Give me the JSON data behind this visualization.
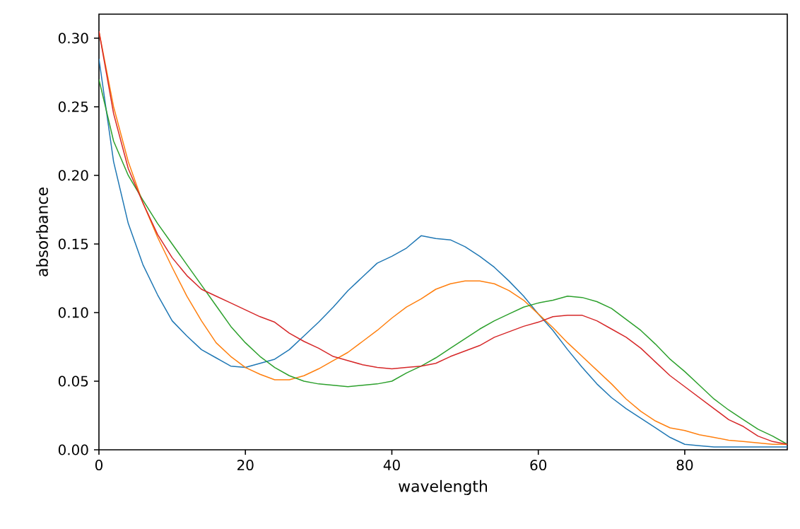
{
  "chart_data": {
    "type": "line",
    "xlabel": "wavelength",
    "ylabel": "absorbance",
    "x": [
      0,
      2,
      4,
      6,
      8,
      10,
      12,
      14,
      16,
      18,
      20,
      22,
      24,
      26,
      28,
      30,
      32,
      34,
      36,
      38,
      40,
      42,
      44,
      46,
      48,
      50,
      52,
      54,
      56,
      58,
      60,
      62,
      64,
      66,
      68,
      70,
      72,
      74,
      76,
      78,
      80,
      82,
      84,
      86,
      88,
      90,
      92,
      94
    ],
    "series": [
      {
        "color": "#1f77b4",
        "values": [
          0.285,
          0.21,
          0.165,
          0.135,
          0.113,
          0.094,
          0.083,
          0.073,
          0.067,
          0.061,
          0.06,
          0.063,
          0.066,
          0.073,
          0.083,
          0.093,
          0.104,
          0.116,
          0.126,
          0.136,
          0.141,
          0.147,
          0.156,
          0.154,
          0.153,
          0.148,
          0.141,
          0.133,
          0.123,
          0.112,
          0.099,
          0.087,
          0.073,
          0.06,
          0.048,
          0.038,
          0.03,
          0.023,
          0.016,
          0.009,
          0.004,
          0.003,
          0.002,
          0.002,
          0.002,
          0.002,
          0.002,
          0.002
        ]
      },
      {
        "color": "#ff7f0e",
        "values": [
          0.305,
          0.25,
          0.21,
          0.18,
          0.155,
          0.133,
          0.112,
          0.094,
          0.078,
          0.068,
          0.06,
          0.055,
          0.051,
          0.051,
          0.054,
          0.059,
          0.065,
          0.071,
          0.079,
          0.087,
          0.096,
          0.104,
          0.11,
          0.117,
          0.121,
          0.123,
          0.123,
          0.121,
          0.116,
          0.109,
          0.099,
          0.089,
          0.078,
          0.068,
          0.058,
          0.048,
          0.037,
          0.028,
          0.021,
          0.016,
          0.014,
          0.011,
          0.009,
          0.007,
          0.006,
          0.005,
          0.004,
          0.004
        ]
      },
      {
        "color": "#2ca02c",
        "values": [
          0.27,
          0.225,
          0.2,
          0.182,
          0.165,
          0.15,
          0.135,
          0.12,
          0.105,
          0.09,
          0.078,
          0.068,
          0.06,
          0.054,
          0.05,
          0.048,
          0.047,
          0.046,
          0.047,
          0.048,
          0.05,
          0.056,
          0.061,
          0.067,
          0.074,
          0.081,
          0.088,
          0.094,
          0.099,
          0.104,
          0.107,
          0.109,
          0.112,
          0.111,
          0.108,
          0.103,
          0.095,
          0.087,
          0.077,
          0.066,
          0.057,
          0.047,
          0.037,
          0.029,
          0.022,
          0.015,
          0.01,
          0.004
        ]
      },
      {
        "color": "#d62728",
        "values": [
          0.305,
          0.245,
          0.205,
          0.18,
          0.157,
          0.14,
          0.127,
          0.117,
          0.112,
          0.107,
          0.102,
          0.097,
          0.093,
          0.085,
          0.079,
          0.074,
          0.068,
          0.065,
          0.062,
          0.06,
          0.059,
          0.06,
          0.061,
          0.063,
          0.068,
          0.072,
          0.076,
          0.082,
          0.086,
          0.09,
          0.093,
          0.097,
          0.098,
          0.098,
          0.094,
          0.088,
          0.082,
          0.074,
          0.064,
          0.054,
          0.046,
          0.038,
          0.03,
          0.022,
          0.017,
          0.01,
          0.006,
          0.004
        ]
      }
    ],
    "xlim": [
      0,
      94
    ],
    "ylim": [
      0,
      0.3175
    ],
    "xticks": [
      0,
      20,
      40,
      60,
      80
    ],
    "yticks": [
      {
        "value": 0,
        "label": "0.00"
      },
      {
        "value": 0.05,
        "label": "0.05"
      },
      {
        "value": 0.1,
        "label": "0.10"
      },
      {
        "value": 0.15,
        "label": "0.15"
      },
      {
        "value": 0.2,
        "label": "0.20"
      },
      {
        "value": 0.25,
        "label": "0.25"
      },
      {
        "value": 0.3,
        "label": "0.30"
      }
    ]
  }
}
